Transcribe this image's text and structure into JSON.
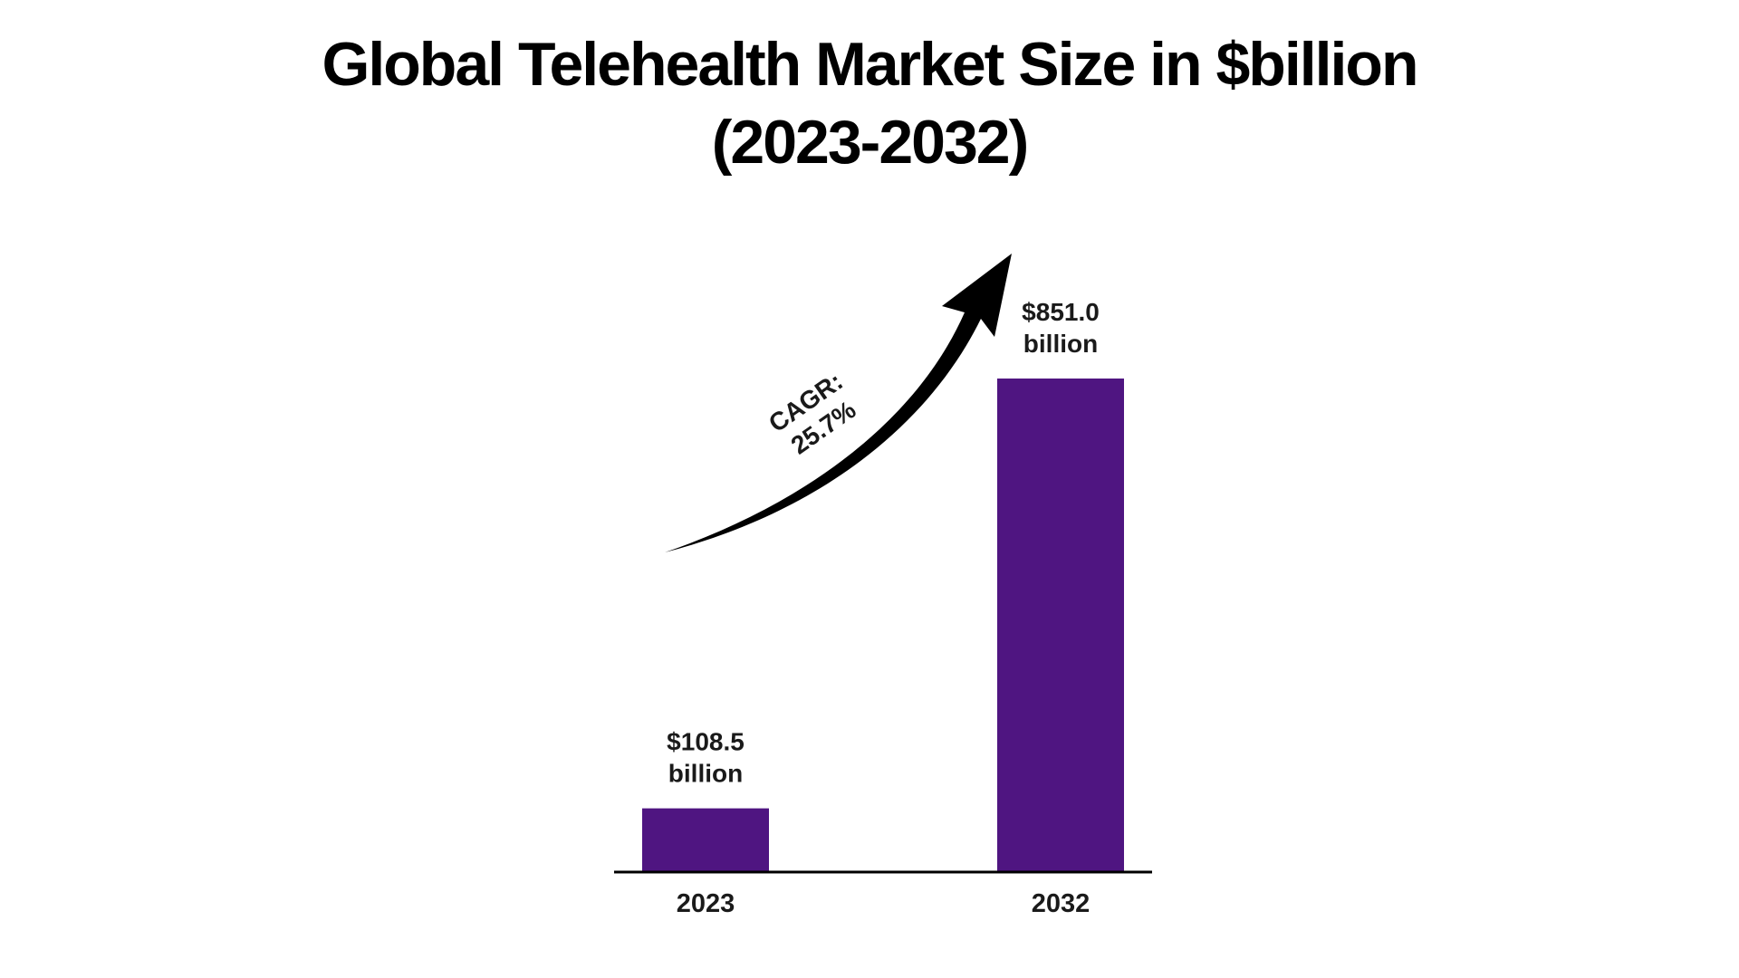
{
  "chart_data": {
    "type": "bar",
    "title": "Global Telehealth Market Size in $billion",
    "subtitle": "(2023-2032)",
    "categories": [
      "2023",
      "2032"
    ],
    "values": [
      108.5,
      851.0
    ],
    "data_labels": [
      [
        "$108.5",
        "billion"
      ],
      [
        "$851.0",
        "billion"
      ]
    ],
    "annotation": [
      "CAGR:",
      "25.7%"
    ],
    "xlabel": "",
    "ylabel": "",
    "ylim": [
      0,
      851.0
    ],
    "grid": false,
    "legend": "none",
    "bar_color": "#4f1581",
    "axis_color": "#000000",
    "arrow_color": "#000000"
  }
}
